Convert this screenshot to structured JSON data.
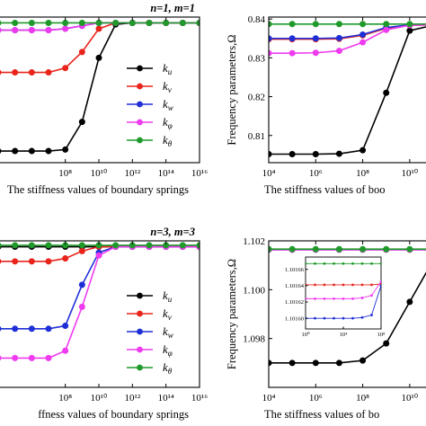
{
  "colors": {
    "k_u": "#000000",
    "k_v": "#e8241c",
    "k_w": "#1f2fd6",
    "k_phi": "#ef3bef",
    "k_theta": "#1f9a2a"
  },
  "chart_data": [
    {
      "type": "line",
      "title": "n=1, m=1",
      "xlabel": "The stiffness values of boundary springs",
      "ylabel": "",
      "xscale": "log",
      "xlim": [
        10000.0,
        1e+16
      ],
      "xticks": [
        {
          "v": 100000000.0,
          "label": "10⁸"
        },
        {
          "v": 10000000000.0,
          "label": "10¹⁰"
        },
        {
          "v": 1000000000000.0,
          "label": "10¹²"
        },
        {
          "v": 100000000000000.0,
          "label": "10¹⁴"
        },
        {
          "v": 1e+16,
          "label": "10¹⁶"
        }
      ],
      "yticks": [],
      "ylim": [
        0,
        1
      ],
      "x": [
        10000.0,
        100000.0,
        1000000.0,
        10000000.0,
        100000000.0,
        1000000000.0,
        10000000000.0,
        100000000000.0,
        1000000000000.0,
        10000000000000.0,
        100000000000000.0,
        1000000000000000.0,
        1e+16
      ],
      "series": [
        {
          "name": "k_u",
          "color": "k_u",
          "values": [
            0.08,
            0.08,
            0.08,
            0.08,
            0.09,
            0.28,
            0.72,
            0.95,
            0.96,
            0.96,
            0.96,
            0.96,
            0.96
          ]
        },
        {
          "name": "k_v",
          "color": "k_v",
          "values": [
            0.62,
            0.62,
            0.62,
            0.62,
            0.65,
            0.76,
            0.92,
            0.96,
            0.96,
            0.96,
            0.96,
            0.96,
            0.96
          ]
        },
        {
          "name": "k_w",
          "color": "k_w",
          "values": [
            0.91,
            0.91,
            0.91,
            0.91,
            0.92,
            0.94,
            0.96,
            0.96,
            0.96,
            0.96,
            0.96,
            0.96,
            0.96
          ]
        },
        {
          "name": "k_φ",
          "color": "k_phi",
          "values": [
            0.91,
            0.91,
            0.91,
            0.91,
            0.92,
            0.94,
            0.96,
            0.96,
            0.96,
            0.96,
            0.96,
            0.96,
            0.96
          ]
        },
        {
          "name": "k_θ",
          "color": "k_theta",
          "values": [
            0.96,
            0.96,
            0.96,
            0.96,
            0.96,
            0.96,
            0.96,
            0.96,
            0.96,
            0.96,
            0.96,
            0.96,
            0.96
          ]
        }
      ],
      "legend": [
        {
          "name": "k_u",
          "sym": "k",
          "sub": "u",
          "color": "k_u"
        },
        {
          "name": "k_v",
          "sym": "k",
          "sub": "v",
          "color": "k_v"
        },
        {
          "name": "k_w",
          "sym": "k",
          "sub": "w",
          "color": "k_w"
        },
        {
          "name": "k_φ",
          "sym": "k",
          "sub": "φ",
          "color": "k_phi"
        },
        {
          "name": "k_θ",
          "sym": "k",
          "sub": "θ",
          "color": "k_theta"
        }
      ],
      "legend_position": "right"
    },
    {
      "type": "line",
      "title": "",
      "xlabel": "The stiffness values of boo",
      "ylabel": "Frequency parameters,Ω",
      "xscale": "log",
      "xlim": [
        10000.0,
        100000000000.0
      ],
      "ylim": [
        0.803,
        0.8405
      ],
      "xticks": [
        {
          "v": 10000.0,
          "label": "10⁴"
        },
        {
          "v": 1000000.0,
          "label": "10⁶"
        },
        {
          "v": 100000000.0,
          "label": "10⁸"
        },
        {
          "v": 10000000000.0,
          "label": "10¹⁰"
        }
      ],
      "yticks": [
        {
          "v": 0.81,
          "label": "0.81"
        },
        {
          "v": 0.82,
          "label": "0.82"
        },
        {
          "v": 0.83,
          "label": "0.83"
        },
        {
          "v": 0.84,
          "label": "0.84"
        }
      ],
      "x": [
        10000.0,
        100000.0,
        1000000.0,
        10000000.0,
        100000000.0,
        1000000000.0,
        10000000000.0,
        100000000000.0,
        1000000000000.0
      ],
      "series": [
        {
          "name": "k_u",
          "color": "k_u",
          "values": [
            0.8052,
            0.8052,
            0.8052,
            0.8053,
            0.8062,
            0.821,
            0.837,
            0.8384,
            0.8385
          ]
        },
        {
          "name": "k_v",
          "color": "k_v",
          "values": [
            0.8348,
            0.8348,
            0.8348,
            0.8349,
            0.8358,
            0.8376,
            0.8384,
            0.8385,
            0.8385
          ]
        },
        {
          "name": "k_w",
          "color": "k_w",
          "values": [
            0.835,
            0.835,
            0.835,
            0.8351,
            0.836,
            0.8378,
            0.8385,
            0.8385,
            0.8385
          ]
        },
        {
          "name": "k_φ",
          "color": "k_phi",
          "values": [
            0.8312,
            0.8312,
            0.8313,
            0.8318,
            0.834,
            0.8372,
            0.8384,
            0.8385,
            0.8385
          ]
        },
        {
          "name": "k_θ",
          "color": "k_theta",
          "values": [
            0.8387,
            0.8387,
            0.8387,
            0.8387,
            0.8387,
            0.8387,
            0.8387,
            0.8387,
            0.8387
          ]
        }
      ]
    },
    {
      "type": "line",
      "title": "n=3, m=3",
      "xlabel": "ffness values of boundary springs",
      "ylabel": "",
      "xscale": "log",
      "xlim": [
        10000.0,
        1e+16
      ],
      "xticks": [
        {
          "v": 100000000.0,
          "label": "10⁸"
        },
        {
          "v": 10000000000.0,
          "label": "10¹⁰"
        },
        {
          "v": 1000000000000.0,
          "label": "10¹²"
        },
        {
          "v": 100000000000000.0,
          "label": "10¹⁴"
        },
        {
          "v": 1e+16,
          "label": "10¹⁶"
        }
      ],
      "yticks": [],
      "ylim": [
        0,
        1
      ],
      "x": [
        10000.0,
        100000.0,
        1000000.0,
        10000000.0,
        100000000.0,
        1000000000.0,
        10000000000.0,
        100000000000.0,
        1000000000000.0,
        10000000000000.0,
        100000000000000.0,
        1000000000000000.0,
        1e+16
      ],
      "series": [
        {
          "name": "k_u",
          "color": "k_u",
          "values": [
            0.96,
            0.96,
            0.96,
            0.96,
            0.96,
            0.96,
            0.96,
            0.96,
            0.96,
            0.96,
            0.96,
            0.96,
            0.96
          ]
        },
        {
          "name": "k_v",
          "color": "k_v",
          "values": [
            0.86,
            0.86,
            0.86,
            0.86,
            0.88,
            0.93,
            0.96,
            0.96,
            0.96,
            0.96,
            0.96,
            0.96,
            0.96
          ]
        },
        {
          "name": "k_w",
          "color": "k_w",
          "values": [
            0.4,
            0.4,
            0.4,
            0.4,
            0.42,
            0.7,
            0.92,
            0.96,
            0.96,
            0.96,
            0.96,
            0.96,
            0.96
          ]
        },
        {
          "name": "k_φ",
          "color": "k_phi",
          "values": [
            0.2,
            0.2,
            0.2,
            0.2,
            0.25,
            0.55,
            0.9,
            0.96,
            0.96,
            0.96,
            0.96,
            0.96,
            0.96
          ]
        },
        {
          "name": "k_θ",
          "color": "k_theta",
          "values": [
            0.97,
            0.97,
            0.97,
            0.97,
            0.97,
            0.97,
            0.97,
            0.97,
            0.97,
            0.97,
            0.97,
            0.97,
            0.97
          ]
        }
      ],
      "legend": [
        {
          "name": "k_u",
          "sym": "k",
          "sub": "u",
          "color": "k_u"
        },
        {
          "name": "k_v",
          "sym": "k",
          "sub": "v",
          "color": "k_v"
        },
        {
          "name": "k_w",
          "sym": "k",
          "sub": "w",
          "color": "k_w"
        },
        {
          "name": "k_φ",
          "sym": "k",
          "sub": "φ",
          "color": "k_phi"
        },
        {
          "name": "k_θ",
          "sym": "k",
          "sub": "θ",
          "color": "k_theta"
        }
      ],
      "legend_position": "right"
    },
    {
      "type": "line",
      "title": "",
      "xlabel": "The stiffness values of bo",
      "ylabel": "Frequency parameters,Ω",
      "xscale": "log",
      "xlim": [
        10000.0,
        100000000000.0
      ],
      "ylim": [
        1.096,
        1.102
      ],
      "xticks": [
        {
          "v": 10000.0,
          "label": "10⁴"
        },
        {
          "v": 1000000.0,
          "label": "10⁶"
        },
        {
          "v": 100000000.0,
          "label": "10⁸"
        },
        {
          "v": 10000000000.0,
          "label": "10¹⁰"
        }
      ],
      "yticks": [
        {
          "v": 1.098,
          "label": "1.098"
        },
        {
          "v": 1.1,
          "label": "1.100"
        },
        {
          "v": 1.102,
          "label": "1.102"
        }
      ],
      "x": [
        10000.0,
        100000.0,
        1000000.0,
        10000000.0,
        100000000.0,
        1000000000.0,
        10000000000.0,
        100000000000.0,
        1000000000000.0
      ],
      "series": [
        {
          "name": "k_u",
          "color": "k_u",
          "values": [
            1.097,
            1.097,
            1.097,
            1.097,
            1.0971,
            1.0978,
            1.0995,
            1.1012,
            1.1015
          ]
        },
        {
          "name": "k_v",
          "color": "k_v",
          "values": [
            1.10164,
            1.10164,
            1.10164,
            1.10164,
            1.10164,
            1.10164,
            1.10164,
            1.10164,
            1.10164
          ]
        },
        {
          "name": "k_w",
          "color": "k_w",
          "values": [
            1.10164,
            1.10164,
            1.10164,
            1.10164,
            1.10164,
            1.10164,
            1.10164,
            1.10164,
            1.10164
          ]
        },
        {
          "name": "k_φ",
          "color": "k_phi",
          "values": [
            1.10164,
            1.10164,
            1.10164,
            1.10164,
            1.10164,
            1.10164,
            1.10164,
            1.10164,
            1.10164
          ]
        },
        {
          "name": "k_θ",
          "color": "k_theta",
          "values": [
            1.10166,
            1.10166,
            1.10166,
            1.10166,
            1.10166,
            1.10166,
            1.10166,
            1.10166,
            1.10166
          ]
        }
      ],
      "inset": {
        "xscale": "log",
        "xlim": [
          1,
          100000000.0
        ],
        "ylim": [
          1.101587,
          1.101675
        ],
        "yticks": [
          {
            "v": 1.1016,
            "label": "1.10160"
          },
          {
            "v": 1.10162,
            "label": "1.10162"
          },
          {
            "v": 1.10164,
            "label": "1.10164"
          },
          {
            "v": 1.10166,
            "label": "1.10166"
          }
        ],
        "xticks": [
          {
            "v": 1,
            "label": "10⁰"
          },
          {
            "v": 10000.0,
            "label": "10⁴"
          },
          {
            "v": 100000000.0,
            "label": "10⁸"
          }
        ],
        "x": [
          1,
          10,
          100,
          1000.0,
          10000.0,
          100000.0,
          1000000.0,
          10000000.0,
          100000000.0
        ],
        "series": [
          {
            "name": "k_θ",
            "color": "k_theta",
            "values": [
              1.101667,
              1.101667,
              1.101667,
              1.101667,
              1.101667,
              1.101667,
              1.101667,
              1.101667,
              1.101667
            ]
          },
          {
            "name": "k_v",
            "color": "k_v",
            "values": [
              1.101641,
              1.101641,
              1.101641,
              1.101641,
              1.101641,
              1.101641,
              1.101641,
              1.101641,
              1.101642
            ]
          },
          {
            "name": "k_φ",
            "color": "k_phi",
            "values": [
              1.101624,
              1.101624,
              1.101624,
              1.101624,
              1.101624,
              1.101624,
              1.101625,
              1.101628,
              1.101645
            ]
          },
          {
            "name": "k_w",
            "color": "k_w",
            "values": [
              1.1016,
              1.1016,
              1.1016,
              1.1016,
              1.1016,
              1.1016,
              1.101601,
              1.101604,
              1.10164
            ]
          }
        ]
      }
    }
  ]
}
